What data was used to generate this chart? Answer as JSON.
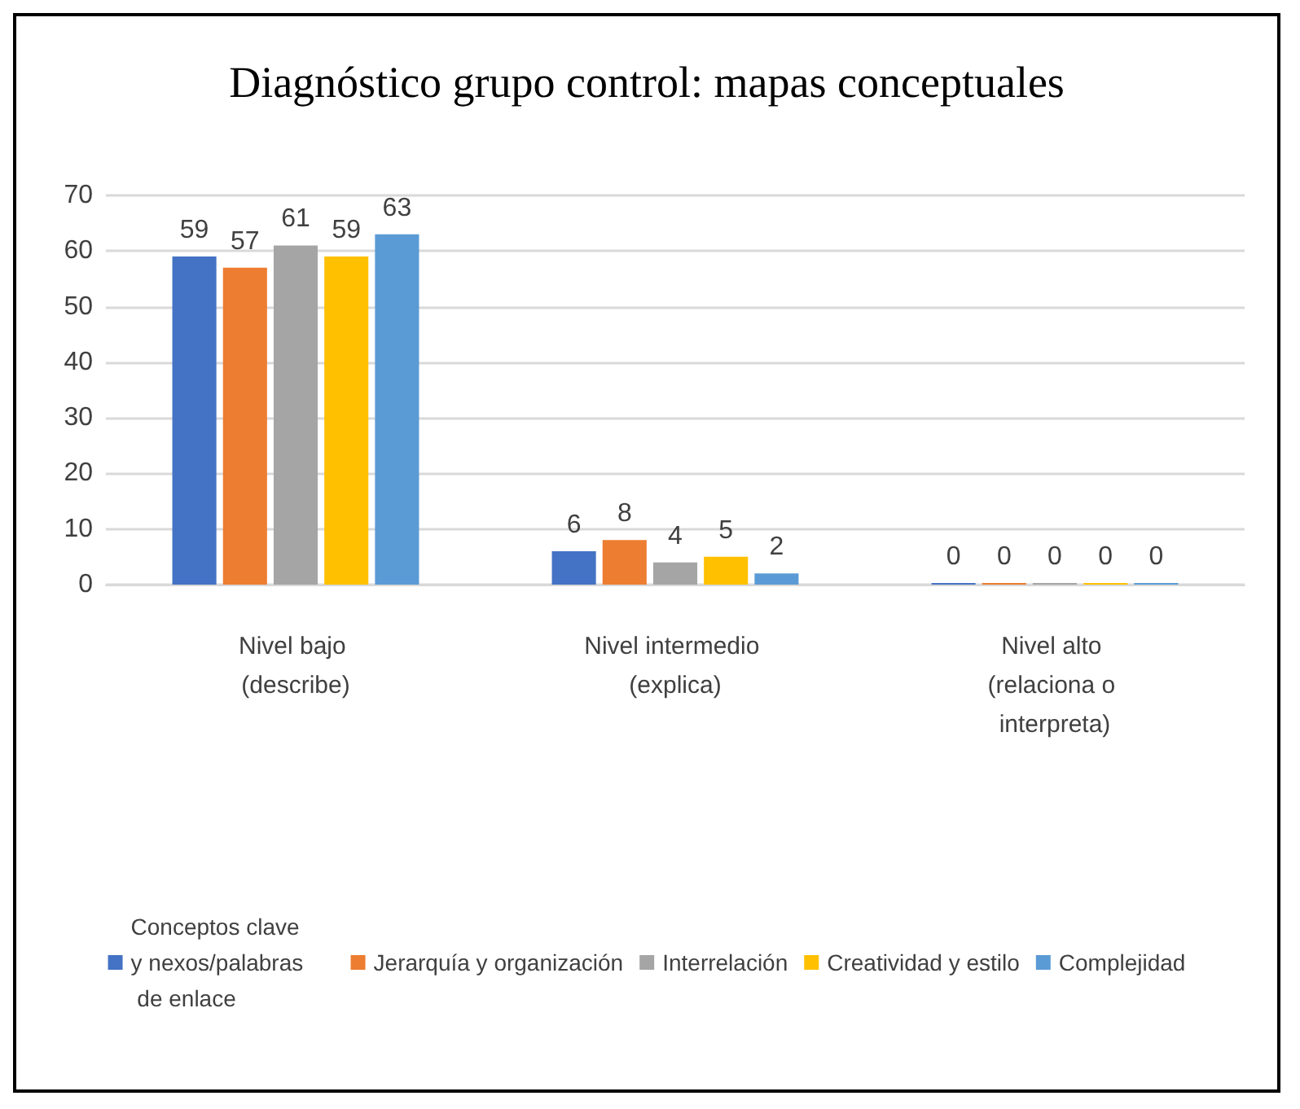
{
  "chart_data": {
    "type": "bar",
    "title": "Diagnóstico grupo control: mapas conceptuales",
    "categories": [
      "Nivel bajo (describe)",
      "Nivel intermedio (explica)",
      "Nivel alto (relaciona o interpreta)"
    ],
    "series": [
      {
        "name": "Conceptos clave y nexos/palabras de enlace",
        "color": "#4472c4",
        "values": [
          59,
          6,
          0
        ]
      },
      {
        "name": "Jerarquía y organización",
        "color": "#ed7d31",
        "values": [
          57,
          8,
          0
        ]
      },
      {
        "name": "Interrelación",
        "color": "#a5a5a5",
        "values": [
          61,
          4,
          0
        ]
      },
      {
        "name": "Creatividad y estilo",
        "color": "#ffc000",
        "values": [
          59,
          5,
          0
        ]
      },
      {
        "name": "Complejidad",
        "color": "#5b9bd5",
        "values": [
          63,
          2,
          0
        ]
      }
    ],
    "ylim": [
      0,
      70
    ],
    "yticks": [
      0,
      10,
      20,
      30,
      40,
      50,
      60,
      70
    ],
    "grid": "y",
    "data_labels": true,
    "legend": "bottom"
  }
}
